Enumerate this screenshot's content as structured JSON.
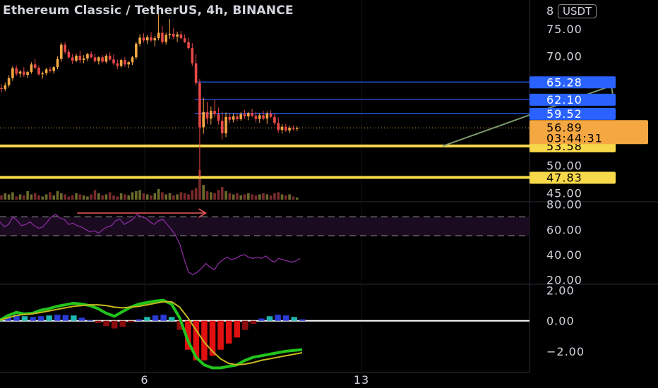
{
  "header": {
    "title": "Ethereum Classic / TetherUS, 4h, BINANCE",
    "currency": "USDT",
    "axis_top_fragment": "8"
  },
  "colors": {
    "background": "#000000",
    "candle_up": "#f5a742",
    "candle_down": "#e84848",
    "level_line": "#2962ff",
    "support_line": "#f7d84a",
    "rsi_line": "#8a2b9e",
    "rsi_annotation": "#f05a5a",
    "target_arrow": "#7c9a6b",
    "macd_fast": "#22c41c",
    "macd_slow": "#c8b820",
    "current_price_tag": "#f5a742"
  },
  "chart_data": [
    {
      "type": "candlestick",
      "panel": "price",
      "symbol": "Ethereum Classic / TetherUS",
      "interval": "4h",
      "exchange": "BINANCE",
      "ylim": [
        43.5,
        79
      ],
      "y_ticks": [
        "75.00",
        "70.00",
        "50.00",
        "45.00"
      ],
      "x_ticks": [
        "6",
        "13"
      ],
      "candles": [
        [
          64.2,
          64.9,
          63.4,
          64.0
        ],
        [
          64.0,
          65.2,
          63.6,
          64.7
        ],
        [
          64.7,
          66.5,
          64.3,
          66.0
        ],
        [
          66.0,
          68.2,
          65.5,
          67.8
        ],
        [
          67.8,
          68.3,
          66.4,
          66.8
        ],
        [
          66.8,
          67.5,
          66.1,
          67.2
        ],
        [
          67.2,
          68.0,
          66.2,
          66.6
        ],
        [
          66.6,
          67.4,
          66.0,
          67.1
        ],
        [
          67.1,
          68.9,
          66.8,
          68.5
        ],
        [
          68.5,
          69.5,
          67.6,
          67.9
        ],
        [
          67.9,
          68.3,
          66.4,
          66.7
        ],
        [
          66.7,
          67.2,
          65.9,
          66.9
        ],
        [
          66.9,
          67.9,
          66.5,
          67.6
        ],
        [
          67.6,
          68.1,
          67.0,
          67.3
        ],
        [
          67.3,
          68.2,
          66.8,
          68.0
        ],
        [
          68.0,
          70.0,
          67.6,
          69.5
        ],
        [
          69.5,
          72.5,
          69.0,
          72.1
        ],
        [
          72.1,
          72.6,
          70.4,
          70.8
        ],
        [
          70.8,
          71.3,
          69.5,
          69.8
        ],
        [
          69.8,
          70.4,
          68.6,
          69.2
        ],
        [
          69.2,
          70.5,
          68.9,
          70.1
        ],
        [
          70.1,
          71.0,
          68.8,
          69.3
        ],
        [
          69.3,
          70.2,
          68.7,
          69.6
        ],
        [
          69.6,
          70.6,
          69.1,
          70.4
        ],
        [
          70.4,
          70.9,
          69.6,
          69.8
        ],
        [
          69.8,
          70.5,
          68.8,
          69.1
        ],
        [
          69.1,
          70.0,
          68.5,
          69.8
        ],
        [
          69.8,
          70.2,
          68.8,
          69.0
        ],
        [
          69.0,
          70.4,
          68.7,
          70.1
        ],
        [
          70.1,
          70.7,
          69.2,
          69.4
        ],
        [
          69.4,
          70.3,
          68.4,
          68.7
        ],
        [
          68.7,
          69.4,
          67.6,
          68.2
        ],
        [
          68.2,
          69.6,
          67.9,
          69.3
        ],
        [
          69.3,
          69.8,
          68.1,
          68.5
        ],
        [
          68.5,
          69.1,
          67.8,
          68.9
        ],
        [
          68.9,
          70.1,
          68.4,
          69.8
        ],
        [
          69.8,
          72.6,
          69.4,
          72.3
        ],
        [
          72.3,
          74.0,
          71.8,
          73.4
        ],
        [
          73.4,
          74.2,
          72.5,
          72.9
        ],
        [
          72.9,
          73.9,
          72.2,
          73.5
        ],
        [
          73.5,
          74.4,
          72.6,
          72.9
        ],
        [
          72.9,
          73.7,
          71.8,
          73.3
        ],
        [
          73.3,
          77.8,
          72.9,
          74.3
        ],
        [
          74.3,
          75.5,
          72.2,
          72.6
        ],
        [
          72.6,
          74.3,
          72.1,
          73.9
        ],
        [
          73.9,
          76.8,
          73.2,
          74.1
        ],
        [
          74.1,
          75.2,
          73.1,
          73.6
        ],
        [
          73.6,
          74.5,
          72.6,
          74.0
        ],
        [
          74.0,
          74.6,
          73.1,
          73.3
        ],
        [
          73.3,
          74.0,
          72.4,
          72.6
        ],
        [
          72.6,
          73.4,
          71.2,
          71.5
        ],
        [
          71.5,
          72.4,
          68.2,
          68.7
        ],
        [
          68.7,
          70.4,
          64.6,
          65.1
        ],
        [
          65.1,
          65.8,
          47.8,
          57.0
        ],
        [
          57.0,
          62.4,
          55.8,
          59.8
        ],
        [
          59.8,
          61.6,
          57.6,
          58.6
        ],
        [
          58.6,
          60.8,
          57.5,
          60.0
        ],
        [
          60.0,
          62.0,
          58.8,
          59.4
        ],
        [
          59.4,
          60.6,
          57.5,
          58.2
        ],
        [
          58.2,
          59.8,
          54.8,
          55.9
        ],
        [
          55.9,
          59.7,
          55.2,
          58.9
        ],
        [
          58.9,
          59.6,
          57.8,
          58.4
        ],
        [
          58.4,
          59.5,
          57.9,
          59.0
        ],
        [
          59.0,
          59.6,
          58.1,
          58.5
        ],
        [
          58.5,
          59.8,
          58.2,
          59.4
        ],
        [
          59.4,
          60.2,
          58.6,
          59.0
        ],
        [
          59.0,
          59.8,
          58.3,
          59.6
        ],
        [
          59.6,
          60.4,
          58.8,
          59.1
        ],
        [
          59.1,
          59.8,
          57.9,
          58.5
        ],
        [
          58.5,
          59.6,
          57.8,
          59.2
        ],
        [
          59.2,
          60.0,
          58.3,
          58.6
        ],
        [
          58.6,
          59.9,
          57.6,
          59.5
        ],
        [
          59.5,
          60.1,
          58.7,
          58.9
        ],
        [
          58.9,
          59.5,
          57.4,
          57.8
        ],
        [
          57.8,
          58.8,
          56.0,
          56.5
        ],
        [
          56.5,
          57.6,
          55.8,
          57.1
        ],
        [
          57.1,
          57.6,
          56.2,
          56.4
        ],
        [
          56.4,
          57.3,
          55.9,
          56.9
        ],
        [
          56.9,
          57.4,
          56.4,
          56.7
        ],
        [
          56.7,
          57.2,
          56.3,
          56.89
        ]
      ],
      "volume": [
        4,
        6,
        5,
        7,
        3,
        5,
        4,
        8,
        5,
        6,
        4,
        3,
        5,
        7,
        4,
        8,
        6,
        5,
        3,
        4,
        6,
        5,
        4,
        3,
        5,
        9,
        6,
        4,
        5,
        7,
        4,
        3,
        6,
        5,
        4,
        7,
        8,
        9,
        6,
        5,
        4,
        6,
        10,
        7,
        5,
        6,
        4,
        5,
        7,
        6,
        5,
        9,
        11,
        28,
        14,
        8,
        7,
        6,
        9,
        12,
        8,
        6,
        5,
        6,
        4,
        5,
        6,
        5,
        4,
        5,
        6,
        5,
        4,
        6,
        7,
        5,
        4,
        5,
        3,
        2
      ],
      "horizontal_levels": [
        {
          "value": 65.28,
          "label": "65.28",
          "kind": "resistance"
        },
        {
          "value": 62.1,
          "label": "62.10",
          "kind": "resistance"
        },
        {
          "value": 59.52,
          "label": "59.52",
          "kind": "resistance"
        },
        {
          "value": 53.58,
          "label": "53.58",
          "kind": "support"
        },
        {
          "value": 47.83,
          "label": "47.83",
          "kind": "support"
        }
      ],
      "current_price": {
        "value": 56.89,
        "label": "56.89",
        "countdown": "03:44:31"
      },
      "annotation": {
        "type": "arrow",
        "from": {
          "bar": 118,
          "price": 53.58
        },
        "to": {
          "bar": 163,
          "price": 64.6
        }
      }
    },
    {
      "type": "line",
      "panel": "rsi",
      "ylim": [
        17,
        82
      ],
      "y_ticks": [
        "80.00",
        "60.00",
        "40.00",
        "20.00"
      ],
      "bands": [
        70,
        55
      ],
      "values": [
        66,
        62,
        64,
        70,
        67,
        63,
        64,
        66,
        63,
        61,
        62,
        66,
        70,
        72,
        69,
        68,
        64,
        65,
        63,
        62,
        60,
        58,
        59,
        57,
        60,
        62,
        63,
        67,
        68,
        64,
        66,
        68,
        72,
        70,
        69,
        66,
        64,
        67,
        68,
        64,
        60,
        55,
        48,
        36,
        26,
        24,
        26,
        29,
        33,
        30,
        28,
        33,
        36,
        38,
        36,
        37,
        39,
        40,
        38,
        37,
        38,
        37,
        39,
        36,
        34,
        37,
        36,
        35,
        34,
        35,
        37
      ],
      "annotation": {
        "type": "arrow",
        "from": {
          "index": 18,
          "value": 73
        },
        "to": {
          "index": 48,
          "value": 73
        }
      }
    },
    {
      "type": "line",
      "panel": "macd",
      "ylim": [
        -3.4,
        2.4
      ],
      "y_ticks": [
        "2.00",
        "0.00",
        "−2.00"
      ],
      "zero_label": "0.00",
      "series": [
        {
          "role": "fast",
          "values": [
            0.05,
            0.35,
            0.55,
            0.45,
            0.5,
            0.7,
            0.8,
            0.95,
            1.05,
            1.15,
            1.1,
            1.0,
            0.8,
            0.5,
            0.3,
            0.6,
            0.9,
            1.1,
            1.2,
            1.3,
            1.35,
            1.1,
            0.2,
            -1.3,
            -2.4,
            -2.9,
            -3.1,
            -3.1,
            -3.0,
            -2.9,
            -2.6,
            -2.4,
            -2.3,
            -2.2,
            -2.1,
            -2.0,
            -1.95,
            -1.9
          ]
        },
        {
          "role": "signal",
          "values": [
            0.05,
            0.2,
            0.35,
            0.42,
            0.46,
            0.55,
            0.65,
            0.75,
            0.85,
            0.95,
            1.0,
            1.05,
            1.05,
            1.0,
            0.9,
            0.85,
            0.9,
            0.95,
            1.05,
            1.15,
            1.25,
            1.25,
            0.9,
            0.2,
            -0.6,
            -1.4,
            -2.0,
            -2.5,
            -2.8,
            -2.9,
            -2.85,
            -2.75,
            -2.6,
            -2.5,
            -2.4,
            -2.3,
            -2.2,
            -2.1
          ]
        }
      ],
      "histogram": [
        0.1,
        0.3,
        0.4,
        0.3,
        0.25,
        0.3,
        0.35,
        0.4,
        0.38,
        0.35,
        0.2,
        0.05,
        -0.15,
        -0.35,
        -0.5,
        -0.4,
        -0.1,
        0.1,
        0.25,
        0.35,
        0.4,
        0.25,
        -0.6,
        -1.9,
        -2.6,
        -2.6,
        -2.3,
        -1.9,
        -1.5,
        -1.1,
        -0.6,
        -0.2,
        0.15,
        0.3,
        0.4,
        0.35,
        0.25,
        0.1
      ]
    }
  ]
}
